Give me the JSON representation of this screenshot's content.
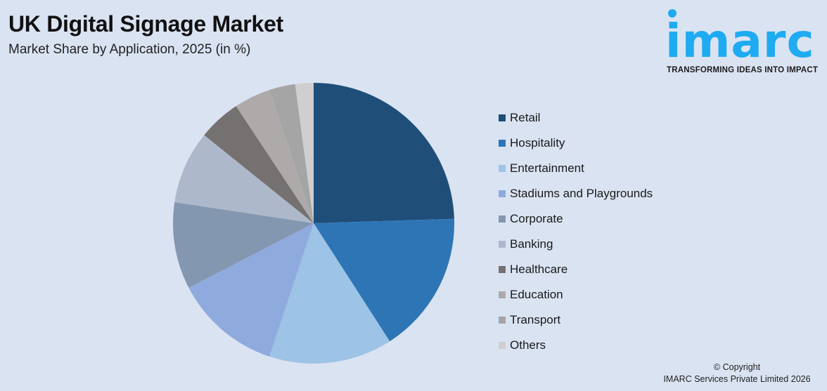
{
  "header": {
    "title": "UK Digital Signage Market",
    "subtitle": "Market Share by Application, 2025 (in %)"
  },
  "logo": {
    "word": "imarc",
    "tagline": "TRANSFORMING IDEAS INTO IMPACT",
    "color": "#1eabf1"
  },
  "footer": {
    "line1": "© Copyright",
    "line2": "IMARC Services Private Limited 2026"
  },
  "chart_data": {
    "type": "pie",
    "title": "UK Digital Signage Market",
    "subtitle": "Market Share by Application, 2025 (in %)",
    "legend_position": "right",
    "start_angle": "12 o'clock, clockwise",
    "categories": [
      "Retail",
      "Hospitality",
      "Entertainment",
      "Stadiums and Playgrounds",
      "Corporate",
      "Banking",
      "Healthcare",
      "Education",
      "Transport",
      "Others"
    ],
    "values": [
      24.5,
      16.4,
      14.2,
      12.3,
      10.0,
      8.4,
      4.9,
      4.2,
      3.0,
      2.1
    ],
    "colors": [
      "#1f4e79",
      "#2e75b6",
      "#9dc3e6",
      "#8faadc",
      "#8497b0",
      "#adb9ca",
      "#767171",
      "#aeaaaa",
      "#a5a5a5",
      "#d0cece"
    ],
    "unit": "%"
  }
}
